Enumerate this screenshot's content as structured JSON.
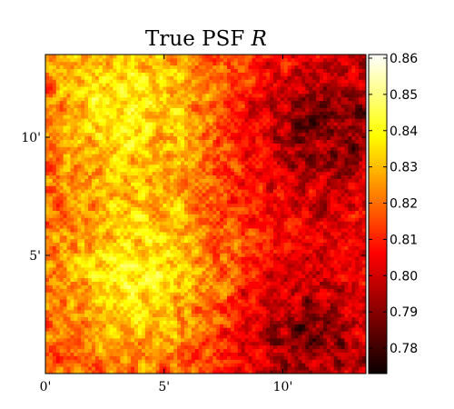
{
  "chart_data": {
    "type": "heatmap",
    "title": "True PSF",
    "title_var": "R",
    "xlabel": "",
    "ylabel": "",
    "colormap": "hot",
    "grid": false,
    "xlim": [
      0,
      13.5
    ],
    "ylim": [
      0,
      13.5
    ],
    "x_ticks": [
      {
        "value": 0,
        "label": "0'"
      },
      {
        "value": 5,
        "label": "5'"
      },
      {
        "value": 10,
        "label": "10'"
      }
    ],
    "y_ticks": [
      {
        "value": 5,
        "label": "5'"
      },
      {
        "value": 10,
        "label": "10'"
      }
    ],
    "colorbar": {
      "vmin": 0.773,
      "vmax": 0.861,
      "ticks": [
        0.78,
        0.79,
        0.8,
        0.81,
        0.82,
        0.83,
        0.84,
        0.85,
        0.86
      ],
      "tick_labels": [
        "0.78",
        "0.79",
        "0.80",
        "0.81",
        "0.82",
        "0.83",
        "0.84",
        "0.85",
        "0.86"
      ]
    },
    "grid_size": 90,
    "regions": [
      {
        "desc": "bright upper-left band",
        "x": 3.5,
        "y": 11.5,
        "value": 0.838
      },
      {
        "desc": "bright lower-left band",
        "x": 4.0,
        "y": 4.0,
        "value": 0.838
      },
      {
        "desc": "dark right side",
        "x": 12.0,
        "y": 10.5,
        "value": 0.788
      },
      {
        "desc": "dark lower-right",
        "x": 11.0,
        "y": 1.5,
        "value": 0.79
      },
      {
        "desc": "field mean",
        "value": 0.812
      }
    ]
  }
}
